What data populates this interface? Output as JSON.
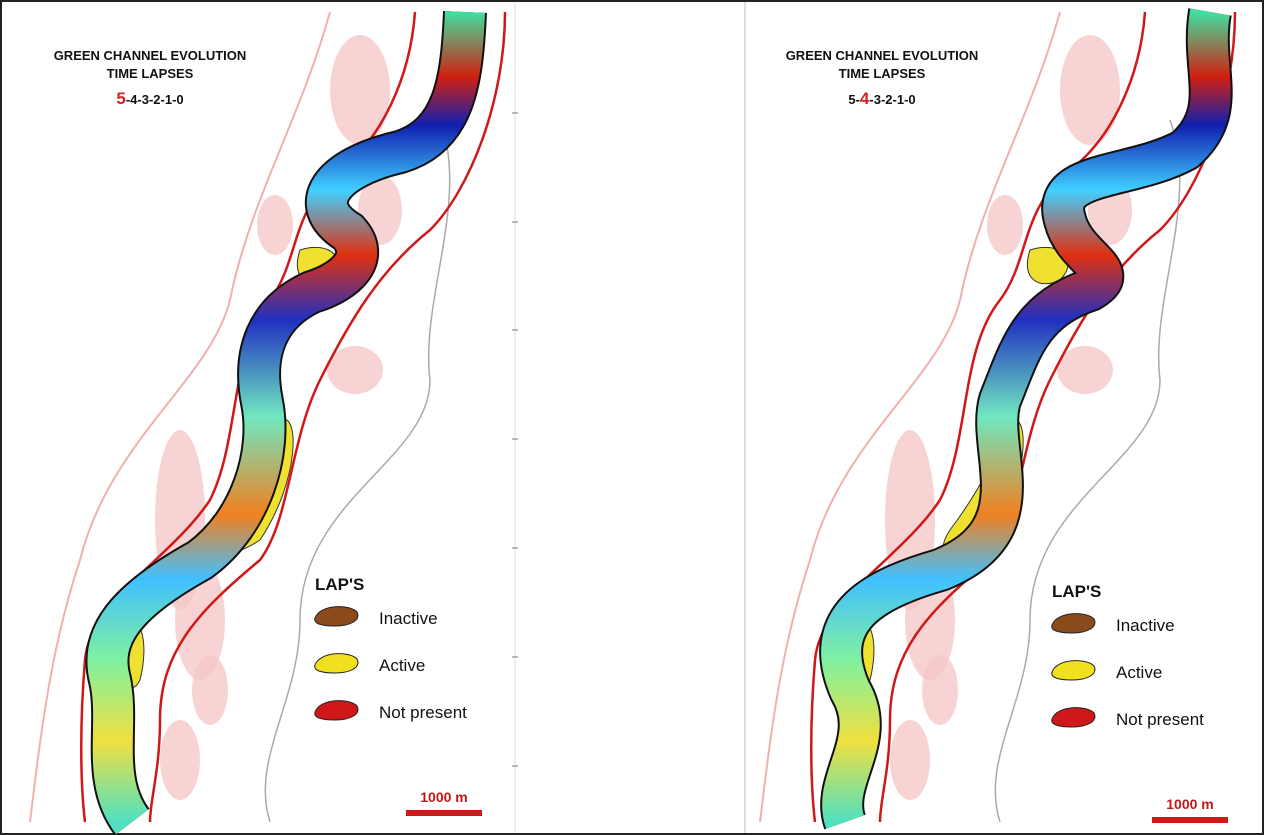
{
  "panels": [
    {
      "title": "GREEN CHANNEL EVOLUTION",
      "subtitle": "TIME LAPSES",
      "sequence": [
        {
          "text": "5",
          "color": "#d42020"
        },
        {
          "text": "-4-3-2-1-0",
          "color": "#111111"
        }
      ],
      "legend": {
        "title": "LAP'S",
        "items": [
          {
            "label": "Inactive",
            "color": "#8a4a1c"
          },
          {
            "label": "Active",
            "color": "#f0e020"
          },
          {
            "label": "Not present",
            "color": "#d01818"
          }
        ]
      },
      "scale": "1000 m"
    },
    {
      "title": "GREEN CHANNEL EVOLUTION",
      "subtitle": "TIME LAPSES",
      "sequence": [
        {
          "text": "5-",
          "color": "#111111"
        },
        {
          "text": "4",
          "color": "#d42020"
        },
        {
          "text": "-3-2-1-0",
          "color": "#111111"
        }
      ],
      "legend": {
        "title": "LAP'S",
        "items": [
          {
            "label": "Inactive",
            "color": "#8a4a1c"
          },
          {
            "label": "Active",
            "color": "#f0e020"
          },
          {
            "label": "Not present",
            "color": "#d01818"
          }
        ]
      },
      "scale": "1000 m"
    }
  ]
}
